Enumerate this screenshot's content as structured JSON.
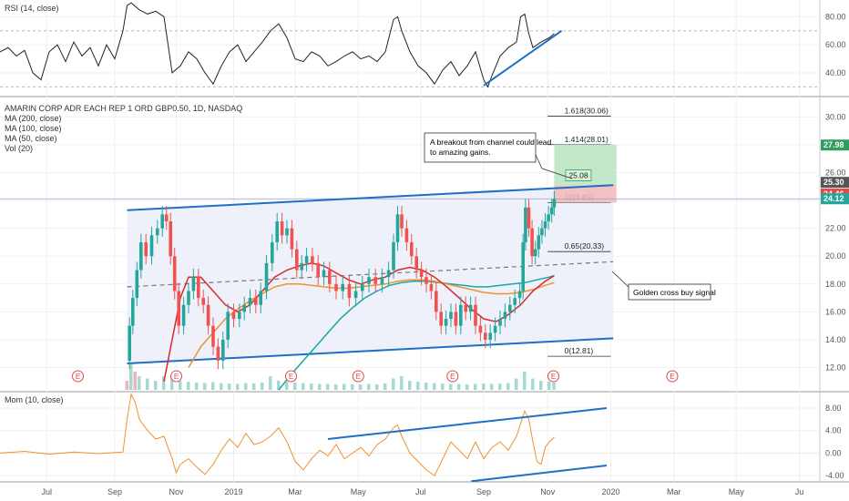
{
  "chart_data": {
    "type": "line",
    "title": "AMARIN CORP ADR EACH REP 1 ORD GBP0.50, 1D, NASDAQ",
    "indicators": [
      "MA (200, close)",
      "MA (100, close)",
      "MA (50, close)",
      "Vol (20)"
    ],
    "rsi_label": "RSI (14, close)",
    "mom_label": "Mom (10, close)",
    "x_ticks": [
      "Jul",
      "Sep",
      "Nov",
      "2019",
      "Mar",
      "May",
      "Jul",
      "Sep",
      "Nov",
      "2020",
      "Mar",
      "May",
      "Ju"
    ],
    "main_ylim": [
      10.4,
      31.2
    ],
    "main_y_ticks": [
      "30.00",
      "28.00",
      "26.00",
      "24.00",
      "22.00",
      "20.00",
      "18.00",
      "16.00",
      "14.00",
      "12.00"
    ],
    "rsi_ylim": [
      25,
      92
    ],
    "rsi_y_ticks": [
      "80.00",
      "60.00",
      "40.00"
    ],
    "mom_ylim": [
      -4.8,
      10.6
    ],
    "mom_y_ticks": [
      "8.00",
      "4.00",
      "0.00",
      "-4.00"
    ],
    "price_tags": [
      {
        "text": "27.98",
        "value": 27.98,
        "color": "#2e9e5e"
      },
      {
        "text": "25.30",
        "value": 25.3,
        "color": "#555555"
      },
      {
        "text": "24.46",
        "value": 24.46,
        "color": "#e04b4b"
      },
      {
        "text": "24.12",
        "value": 24.12,
        "color": "#26a69a"
      }
    ],
    "fib_levels": [
      {
        "label": "1.618(30.06)",
        "value": 30.06
      },
      {
        "label": "1.414(28.01)",
        "value": 28.01
      },
      {
        "label": "1(23.85)",
        "value": 23.85
      },
      {
        "label": "0.65(20.33)",
        "value": 20.33
      },
      {
        "label": "0(12.81)",
        "value": 12.81
      }
    ],
    "target_box_label": "25.08",
    "annotations": {
      "breakout_line1": "A breakout from channel could lead",
      "breakout_line2": "to amazing gains.",
      "golden_cross": "Golden cross buy signal"
    },
    "earnings_marker": "E",
    "channel_upper": [
      [
        0.155,
        23.3
      ],
      [
        0.748,
        25.1
      ]
    ],
    "channel_lower": [
      [
        0.155,
        12.3
      ],
      [
        0.748,
        14.1
      ]
    ],
    "channel_mid": [
      [
        0.155,
        17.8
      ],
      [
        0.748,
        19.6
      ]
    ],
    "price_close": [
      [
        0.155,
        12.5
      ],
      [
        0.158,
        15.0
      ],
      [
        0.162,
        17.0
      ],
      [
        0.167,
        19.0
      ],
      [
        0.172,
        21.0
      ],
      [
        0.178,
        20.0
      ],
      [
        0.185,
        21.5
      ],
      [
        0.192,
        22.0
      ],
      [
        0.198,
        23.0
      ],
      [
        0.203,
        22.5
      ],
      [
        0.208,
        20.0
      ],
      [
        0.213,
        17.5
      ],
      [
        0.218,
        15.0
      ],
      [
        0.224,
        16.5
      ],
      [
        0.23,
        17.5
      ],
      [
        0.236,
        18.5
      ],
      [
        0.242,
        17.0
      ],
      [
        0.248,
        16.5
      ],
      [
        0.254,
        15.0
      ],
      [
        0.26,
        13.5
      ],
      [
        0.266,
        12.5
      ],
      [
        0.272,
        14.0
      ],
      [
        0.278,
        16.0
      ],
      [
        0.285,
        15.5
      ],
      [
        0.292,
        16.0
      ],
      [
        0.298,
        16.5
      ],
      [
        0.305,
        17.0
      ],
      [
        0.312,
        16.5
      ],
      [
        0.318,
        17.5
      ],
      [
        0.325,
        19.5
      ],
      [
        0.332,
        21.0
      ],
      [
        0.338,
        22.5
      ],
      [
        0.344,
        21.5
      ],
      [
        0.35,
        22.0
      ],
      [
        0.356,
        20.5
      ],
      [
        0.362,
        19.0
      ],
      [
        0.368,
        19.5
      ],
      [
        0.374,
        20.0
      ],
      [
        0.381,
        19.5
      ],
      [
        0.388,
        18.5
      ],
      [
        0.395,
        19.0
      ],
      [
        0.402,
        18.0
      ],
      [
        0.41,
        17.5
      ],
      [
        0.418,
        18.0
      ],
      [
        0.426,
        17.0
      ],
      [
        0.434,
        17.5
      ],
      [
        0.442,
        18.0
      ],
      [
        0.45,
        18.5
      ],
      [
        0.458,
        18.0
      ],
      [
        0.466,
        18.5
      ],
      [
        0.474,
        19.0
      ],
      [
        0.48,
        21.0
      ],
      [
        0.485,
        23.0
      ],
      [
        0.49,
        22.0
      ],
      [
        0.496,
        21.0
      ],
      [
        0.502,
        20.0
      ],
      [
        0.508,
        19.0
      ],
      [
        0.514,
        18.5
      ],
      [
        0.52,
        18.0
      ],
      [
        0.526,
        17.5
      ],
      [
        0.532,
        16.0
      ],
      [
        0.538,
        15.0
      ],
      [
        0.544,
        15.5
      ],
      [
        0.55,
        16.0
      ],
      [
        0.556,
        15.0
      ],
      [
        0.562,
        16.5
      ],
      [
        0.568,
        16.0
      ],
      [
        0.574,
        16.5
      ],
      [
        0.58,
        15.0
      ],
      [
        0.586,
        14.5
      ],
      [
        0.592,
        14.0
      ],
      [
        0.598,
        14.5
      ],
      [
        0.604,
        15.0
      ],
      [
        0.61,
        15.5
      ],
      [
        0.616,
        16.0
      ],
      [
        0.622,
        16.5
      ],
      [
        0.628,
        17.0
      ],
      [
        0.634,
        17.5
      ],
      [
        0.638,
        21.0
      ],
      [
        0.641,
        23.5
      ],
      [
        0.645,
        22.0
      ],
      [
        0.649,
        20.0
      ],
      [
        0.653,
        20.5
      ],
      [
        0.657,
        21.5
      ],
      [
        0.661,
        22.0
      ],
      [
        0.665,
        22.5
      ],
      [
        0.669,
        23.0
      ],
      [
        0.673,
        23.5
      ],
      [
        0.676,
        24.1
      ]
    ],
    "ma50": [
      [
        0.2,
        11.0
      ],
      [
        0.21,
        14.0
      ],
      [
        0.22,
        17.0
      ],
      [
        0.23,
        18.5
      ],
      [
        0.245,
        18.5
      ],
      [
        0.26,
        17.5
      ],
      [
        0.275,
        16.5
      ],
      [
        0.29,
        16.0
      ],
      [
        0.305,
        16.5
      ],
      [
        0.32,
        17.5
      ],
      [
        0.335,
        18.5
      ],
      [
        0.35,
        19.0
      ],
      [
        0.365,
        19.3
      ],
      [
        0.38,
        19.5
      ],
      [
        0.395,
        19.3
      ],
      [
        0.41,
        18.8
      ],
      [
        0.425,
        18.3
      ],
      [
        0.44,
        18.0
      ],
      [
        0.455,
        18.3
      ],
      [
        0.47,
        18.5
      ],
      [
        0.485,
        19.0
      ],
      [
        0.5,
        19.2
      ],
      [
        0.515,
        19.0
      ],
      [
        0.53,
        18.5
      ],
      [
        0.545,
        17.8
      ],
      [
        0.56,
        17.0
      ],
      [
        0.575,
        16.2
      ],
      [
        0.59,
        15.5
      ],
      [
        0.605,
        15.3
      ],
      [
        0.62,
        15.8
      ],
      [
        0.635,
        16.5
      ],
      [
        0.65,
        17.5
      ],
      [
        0.665,
        18.2
      ],
      [
        0.676,
        18.6
      ]
    ],
    "ma100": [
      [
        0.23,
        12.0
      ],
      [
        0.245,
        13.5
      ],
      [
        0.26,
        14.5
      ],
      [
        0.275,
        15.5
      ],
      [
        0.29,
        16.2
      ],
      [
        0.305,
        16.8
      ],
      [
        0.32,
        17.3
      ],
      [
        0.335,
        17.8
      ],
      [
        0.35,
        18.0
      ],
      [
        0.365,
        18.0
      ],
      [
        0.38,
        17.9
      ],
      [
        0.395,
        17.8
      ],
      [
        0.41,
        17.7
      ],
      [
        0.425,
        17.7
      ],
      [
        0.44,
        17.8
      ],
      [
        0.455,
        17.9
      ],
      [
        0.47,
        18.0
      ],
      [
        0.485,
        18.2
      ],
      [
        0.5,
        18.3
      ],
      [
        0.515,
        18.3
      ],
      [
        0.53,
        18.2
      ],
      [
        0.545,
        18.0
      ],
      [
        0.56,
        17.8
      ],
      [
        0.575,
        17.6
      ],
      [
        0.59,
        17.4
      ],
      [
        0.605,
        17.3
      ],
      [
        0.62,
        17.3
      ],
      [
        0.635,
        17.4
      ],
      [
        0.65,
        17.6
      ],
      [
        0.665,
        17.9
      ],
      [
        0.676,
        18.1
      ]
    ],
    "ma200": [
      [
        0.34,
        10.4
      ],
      [
        0.355,
        11.5
      ],
      [
        0.37,
        12.5
      ],
      [
        0.385,
        13.5
      ],
      [
        0.4,
        14.5
      ],
      [
        0.415,
        15.5
      ],
      [
        0.43,
        16.3
      ],
      [
        0.445,
        17.0
      ],
      [
        0.46,
        17.5
      ],
      [
        0.475,
        17.9
      ],
      [
        0.49,
        18.1
      ],
      [
        0.505,
        18.2
      ],
      [
        0.52,
        18.2
      ],
      [
        0.535,
        18.1
      ],
      [
        0.55,
        18.0
      ],
      [
        0.565,
        17.9
      ],
      [
        0.58,
        17.8
      ],
      [
        0.595,
        17.8
      ],
      [
        0.61,
        17.9
      ],
      [
        0.625,
        18.0
      ],
      [
        0.64,
        18.1
      ],
      [
        0.655,
        18.3
      ],
      [
        0.67,
        18.5
      ],
      [
        0.676,
        18.6
      ]
    ],
    "volume": [
      [
        0.155,
        2
      ],
      [
        0.16,
        6
      ],
      [
        0.165,
        4
      ],
      [
        0.17,
        3
      ],
      [
        0.18,
        2.5
      ],
      [
        0.19,
        2
      ],
      [
        0.2,
        3
      ],
      [
        0.21,
        2.5
      ],
      [
        0.22,
        2
      ],
      [
        0.23,
        1.8
      ],
      [
        0.24,
        1.6
      ],
      [
        0.25,
        1.5
      ],
      [
        0.26,
        1.7
      ],
      [
        0.27,
        1.5
      ],
      [
        0.28,
        1.4
      ],
      [
        0.29,
        1.3
      ],
      [
        0.3,
        1.5
      ],
      [
        0.31,
        1.4
      ],
      [
        0.32,
        1.6
      ],
      [
        0.33,
        3
      ],
      [
        0.34,
        2
      ],
      [
        0.35,
        1.8
      ],
      [
        0.36,
        1.6
      ],
      [
        0.37,
        1.5
      ],
      [
        0.38,
        1.4
      ],
      [
        0.39,
        1.3
      ],
      [
        0.4,
        1.3
      ],
      [
        0.41,
        1.2
      ],
      [
        0.42,
        1.3
      ],
      [
        0.43,
        1.2
      ],
      [
        0.44,
        1.2
      ],
      [
        0.45,
        1.3
      ],
      [
        0.46,
        1.2
      ],
      [
        0.47,
        1.4
      ],
      [
        0.48,
        2.5
      ],
      [
        0.49,
        3
      ],
      [
        0.5,
        2
      ],
      [
        0.51,
        1.8
      ],
      [
        0.52,
        1.6
      ],
      [
        0.53,
        1.5
      ],
      [
        0.54,
        1.4
      ],
      [
        0.55,
        1.3
      ],
      [
        0.56,
        1.3
      ],
      [
        0.57,
        1.2
      ],
      [
        0.58,
        1.3
      ],
      [
        0.59,
        1.4
      ],
      [
        0.6,
        1.3
      ],
      [
        0.61,
        1.4
      ],
      [
        0.62,
        1.5
      ],
      [
        0.63,
        2.5
      ],
      [
        0.64,
        4
      ],
      [
        0.65,
        2.5
      ],
      [
        0.66,
        2
      ],
      [
        0.67,
        1.8
      ],
      [
        0.676,
        1.6
      ]
    ],
    "rsi": [
      [
        0.0,
        55
      ],
      [
        0.01,
        58
      ],
      [
        0.02,
        52
      ],
      [
        0.03,
        56
      ],
      [
        0.04,
        40
      ],
      [
        0.05,
        35
      ],
      [
        0.06,
        55
      ],
      [
        0.07,
        60
      ],
      [
        0.08,
        48
      ],
      [
        0.09,
        62
      ],
      [
        0.1,
        52
      ],
      [
        0.11,
        58
      ],
      [
        0.12,
        45
      ],
      [
        0.13,
        60
      ],
      [
        0.14,
        50
      ],
      [
        0.15,
        70
      ],
      [
        0.155,
        88
      ],
      [
        0.16,
        90
      ],
      [
        0.17,
        85
      ],
      [
        0.18,
        82
      ],
      [
        0.19,
        84
      ],
      [
        0.2,
        80
      ],
      [
        0.205,
        60
      ],
      [
        0.21,
        40
      ],
      [
        0.22,
        45
      ],
      [
        0.23,
        55
      ],
      [
        0.24,
        50
      ],
      [
        0.25,
        40
      ],
      [
        0.26,
        32
      ],
      [
        0.27,
        45
      ],
      [
        0.28,
        55
      ],
      [
        0.29,
        60
      ],
      [
        0.3,
        48
      ],
      [
        0.31,
        55
      ],
      [
        0.32,
        62
      ],
      [
        0.33,
        70
      ],
      [
        0.34,
        75
      ],
      [
        0.35,
        65
      ],
      [
        0.36,
        50
      ],
      [
        0.37,
        48
      ],
      [
        0.38,
        55
      ],
      [
        0.39,
        52
      ],
      [
        0.4,
        45
      ],
      [
        0.41,
        48
      ],
      [
        0.42,
        52
      ],
      [
        0.43,
        55
      ],
      [
        0.44,
        50
      ],
      [
        0.45,
        52
      ],
      [
        0.46,
        48
      ],
      [
        0.47,
        55
      ],
      [
        0.48,
        78
      ],
      [
        0.485,
        80
      ],
      [
        0.49,
        70
      ],
      [
        0.5,
        55
      ],
      [
        0.51,
        45
      ],
      [
        0.52,
        40
      ],
      [
        0.53,
        32
      ],
      [
        0.54,
        42
      ],
      [
        0.55,
        48
      ],
      [
        0.56,
        38
      ],
      [
        0.57,
        45
      ],
      [
        0.58,
        55
      ],
      [
        0.59,
        35
      ],
      [
        0.595,
        30
      ],
      [
        0.6,
        38
      ],
      [
        0.61,
        52
      ],
      [
        0.62,
        58
      ],
      [
        0.63,
        62
      ],
      [
        0.635,
        80
      ],
      [
        0.64,
        82
      ],
      [
        0.645,
        68
      ],
      [
        0.65,
        58
      ],
      [
        0.66,
        62
      ],
      [
        0.67,
        65
      ],
      [
        0.676,
        68
      ]
    ],
    "rsi_trend": [
      [
        0.59,
        31
      ],
      [
        0.685,
        70
      ]
    ],
    "mom": [
      [
        0.0,
        0.0
      ],
      [
        0.03,
        0.3
      ],
      [
        0.06,
        -0.2
      ],
      [
        0.09,
        0.2
      ],
      [
        0.12,
        -0.1
      ],
      [
        0.15,
        0.2
      ],
      [
        0.155,
        6.0
      ],
      [
        0.16,
        10.5
      ],
      [
        0.165,
        9.0
      ],
      [
        0.17,
        6.0
      ],
      [
        0.18,
        4.0
      ],
      [
        0.19,
        2.5
      ],
      [
        0.2,
        3.0
      ],
      [
        0.21,
        -1.0
      ],
      [
        0.215,
        -3.5
      ],
      [
        0.22,
        -2.0
      ],
      [
        0.23,
        -1.0
      ],
      [
        0.24,
        -2.5
      ],
      [
        0.25,
        -3.8
      ],
      [
        0.26,
        -2.0
      ],
      [
        0.27,
        0.5
      ],
      [
        0.28,
        2.5
      ],
      [
        0.29,
        1.0
      ],
      [
        0.3,
        3.5
      ],
      [
        0.31,
        1.5
      ],
      [
        0.32,
        2.0
      ],
      [
        0.33,
        3.0
      ],
      [
        0.34,
        4.5
      ],
      [
        0.35,
        2.0
      ],
      [
        0.36,
        -1.5
      ],
      [
        0.37,
        -3.0
      ],
      [
        0.38,
        -1.0
      ],
      [
        0.39,
        0.5
      ],
      [
        0.4,
        -0.5
      ],
      [
        0.41,
        1.5
      ],
      [
        0.42,
        -1.0
      ],
      [
        0.43,
        0.0
      ],
      [
        0.44,
        1.0
      ],
      [
        0.45,
        -0.5
      ],
      [
        0.46,
        1.5
      ],
      [
        0.47,
        2.5
      ],
      [
        0.48,
        4.5
      ],
      [
        0.485,
        5.0
      ],
      [
        0.49,
        3.0
      ],
      [
        0.5,
        0.0
      ],
      [
        0.51,
        -1.5
      ],
      [
        0.52,
        -3.0
      ],
      [
        0.53,
        -4.0
      ],
      [
        0.54,
        -1.0
      ],
      [
        0.55,
        2.0
      ],
      [
        0.56,
        0.5
      ],
      [
        0.57,
        -1.0
      ],
      [
        0.58,
        2.0
      ],
      [
        0.59,
        -1.0
      ],
      [
        0.6,
        1.0
      ],
      [
        0.61,
        2.0
      ],
      [
        0.62,
        0.5
      ],
      [
        0.63,
        3.0
      ],
      [
        0.64,
        7.5
      ],
      [
        0.645,
        6.0
      ],
      [
        0.65,
        2.0
      ],
      [
        0.655,
        -1.5
      ],
      [
        0.66,
        -2.0
      ],
      [
        0.665,
        1.0
      ],
      [
        0.67,
        2.0
      ],
      [
        0.676,
        2.8
      ]
    ],
    "mom_trend_upper": [
      [
        0.4,
        2.5
      ],
      [
        0.74,
        8.0
      ]
    ],
    "mom_trend_lower": [
      [
        0.575,
        -5.0
      ],
      [
        0.74,
        -2.2
      ]
    ],
    "earnings_x": [
      0.095,
      0.215,
      0.355,
      0.437,
      0.552,
      0.675,
      0.82
    ]
  }
}
